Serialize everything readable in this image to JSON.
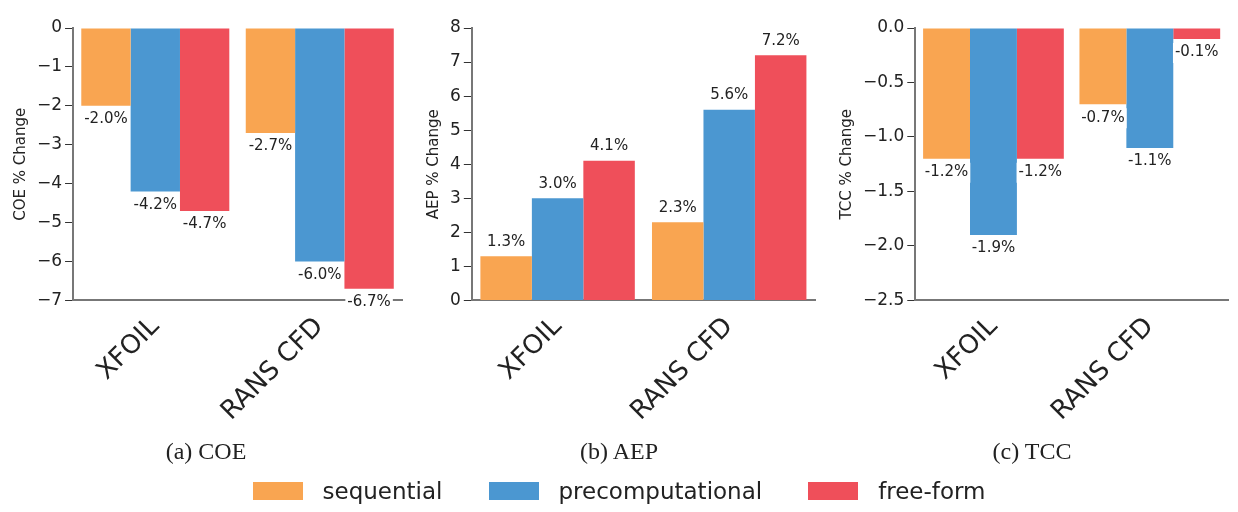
{
  "chart_data": [
    {
      "type": "bar",
      "title": "(a) COE",
      "ylabel": "COE % Change",
      "categories": [
        "XFOIL",
        "RANS CFD"
      ],
      "series": [
        {
          "color": "#f9a551",
          "values": [
            -2.0,
            -2.7
          ],
          "value_labels": [
            "-2.0%",
            "-2.7%"
          ]
        },
        {
          "color": "#4b97d1",
          "values": [
            -4.2,
            -6.0
          ],
          "value_labels": [
            "-4.2%",
            "-6.0%"
          ]
        },
        {
          "color": "#ef4f5a",
          "values": [
            -4.7,
            -6.7
          ],
          "value_labels": [
            "-4.7%",
            "-6.7%"
          ]
        }
      ],
      "ylim": [
        -7,
        0
      ],
      "yticks": [
        {
          "value": 0,
          "label": "0"
        },
        {
          "value": -1,
          "label": "−1"
        },
        {
          "value": -2,
          "label": "−2"
        },
        {
          "value": -3,
          "label": "−3"
        },
        {
          "value": -4,
          "label": "−4"
        },
        {
          "value": -5,
          "label": "−5"
        },
        {
          "value": -6,
          "label": "−6"
        },
        {
          "value": -7,
          "label": "−7"
        }
      ],
      "grid": false,
      "legend": false
    },
    {
      "type": "bar",
      "title": "(b) AEP",
      "ylabel": "AEP % Change",
      "categories": [
        "XFOIL",
        "RANS CFD"
      ],
      "series": [
        {
          "color": "#f9a551",
          "values": [
            1.3,
            2.3
          ],
          "value_labels": [
            "1.3%",
            "2.3%"
          ]
        },
        {
          "color": "#4b97d1",
          "values": [
            3.0,
            5.6
          ],
          "value_labels": [
            "3.0%",
            "5.6%"
          ]
        },
        {
          "color": "#ef4f5a",
          "values": [
            4.1,
            7.2
          ],
          "value_labels": [
            "4.1%",
            "7.2%"
          ]
        }
      ],
      "ylim": [
        0,
        8
      ],
      "yticks": [
        0,
        1,
        2,
        3,
        4,
        5,
        6,
        7,
        8
      ],
      "grid": false,
      "legend": false
    },
    {
      "type": "bar",
      "title": "(c) TCC",
      "ylabel": "TCC % Change",
      "categories": [
        "XFOIL",
        "RANS CFD"
      ],
      "series": [
        {
          "name": "sequential",
          "color": "#f9a551",
          "values": [
            -1.2,
            -0.7
          ],
          "value_labels": [
            "-1.2%",
            "-0.7%"
          ]
        },
        {
          "name": "precomputational",
          "color": "#4b97d1",
          "values": [
            -1.9,
            -1.1
          ],
          "value_labels": [
            "-1.9%",
            "-1.1%"
          ]
        },
        {
          "name": "free-form",
          "color": "#ef4f5a",
          "values": [
            -1.2,
            -0.1
          ],
          "value_labels": [
            "-1.2%",
            "-0.1%"
          ]
        }
      ],
      "ylim": [
        -2.5,
        0
      ],
      "yticks": [
        {
          "value": 0,
          "label": "0.0"
        },
        {
          "value": -0.5,
          "label": "−0.5"
        },
        {
          "value": -1,
          "label": "−1.0"
        },
        {
          "value": -1.5,
          "label": "−1.5"
        },
        {
          "value": -2,
          "label": "−2.0"
        },
        {
          "value": -2.5,
          "label": "−2.5"
        }
      ],
      "grid": false,
      "legend": "bottom"
    }
  ]
}
